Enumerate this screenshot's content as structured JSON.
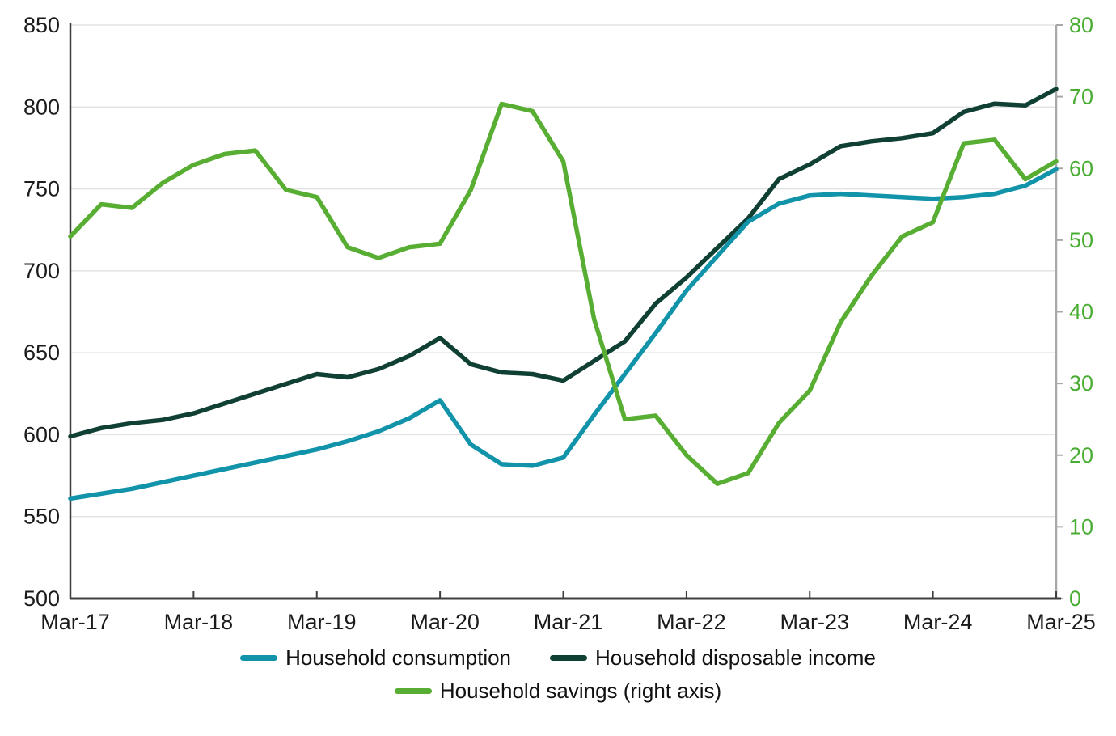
{
  "chart_data": {
    "type": "line",
    "x_quarters": [
      "Mar-17",
      "Jun-17",
      "Sep-17",
      "Dec-17",
      "Mar-18",
      "Jun-18",
      "Sep-18",
      "Dec-18",
      "Mar-19",
      "Jun-19",
      "Sep-19",
      "Dec-19",
      "Mar-20",
      "Jun-20",
      "Sep-20",
      "Dec-20",
      "Mar-21",
      "Jun-21",
      "Sep-21",
      "Dec-21",
      "Mar-22",
      "Jun-22",
      "Sep-22",
      "Dec-22",
      "Mar-23",
      "Jun-23",
      "Sep-23",
      "Dec-23",
      "Mar-24",
      "Jun-24",
      "Sep-24",
      "Dec-24",
      "Mar-25"
    ],
    "x_tick_labels": [
      "Mar-17",
      "Mar-18",
      "Mar-19",
      "Mar-20",
      "Mar-21",
      "Mar-22",
      "Mar-23",
      "Mar-24",
      "Mar-25"
    ],
    "x_tick_every": 4,
    "series": [
      {
        "name": "Household consumption",
        "axis": "left",
        "color": "#1193a9",
        "values": [
          561,
          564,
          567,
          571,
          575,
          579,
          583,
          587,
          591,
          596,
          602,
          610,
          621,
          594,
          582,
          581,
          586,
          612,
          637,
          662,
          688,
          709,
          730,
          741,
          746,
          747,
          746,
          745,
          744,
          745,
          747,
          752,
          762
        ]
      },
      {
        "name": "Household disposable income",
        "axis": "left",
        "color": "#0f4033",
        "values": [
          599,
          604,
          607,
          609,
          613,
          619,
          625,
          631,
          637,
          635,
          640,
          648,
          659,
          643,
          638,
          637,
          633,
          645,
          657,
          680,
          696,
          714,
          732,
          756,
          765,
          776,
          779,
          781,
          784,
          797,
          802,
          801,
          811
        ]
      },
      {
        "name": "Household savings (right axis)",
        "axis": "right",
        "color": "#57ae32",
        "values": [
          50.5,
          55,
          54.5,
          58,
          60.5,
          62,
          62.5,
          57,
          56,
          49,
          47.5,
          49,
          49.5,
          57,
          69,
          68,
          61,
          39,
          25,
          25.5,
          20,
          16,
          17.5,
          24.5,
          29,
          38.5,
          45,
          50.5,
          52.5,
          63.5,
          64,
          58.5,
          61
        ]
      }
    ],
    "left_axis": {
      "min": 500,
      "max": 850,
      "ticks": [
        850,
        800,
        750,
        700,
        650,
        600,
        550,
        500
      ]
    },
    "right_axis": {
      "min": 0,
      "max": 80,
      "ticks": [
        80,
        70,
        60,
        50,
        40,
        30,
        20,
        10,
        0
      ]
    },
    "grid": true,
    "legend_position": "bottom"
  },
  "colors": {
    "grid": "#e3e3e3",
    "axis_dark": "#3f3f3f",
    "axis_light": "#a8a8a8",
    "left_label_text": "#1b1b1b",
    "right_label_text": "#4aad33",
    "x_label_text": "#1b1b1b"
  }
}
